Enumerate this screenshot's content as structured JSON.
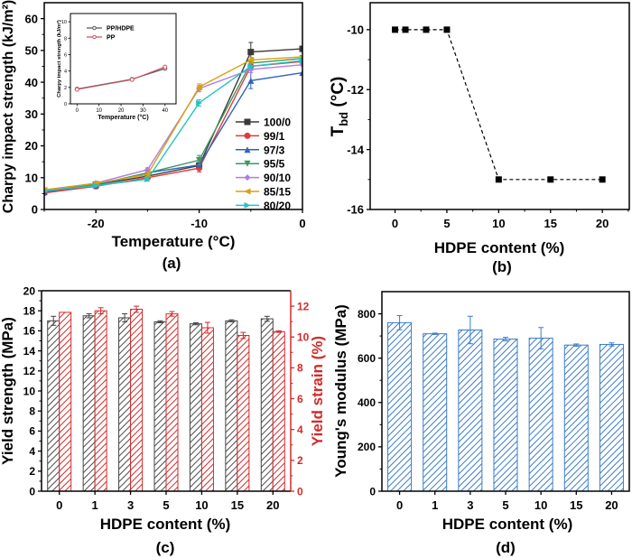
{
  "chart_data": [
    {
      "id": "a",
      "type": "line",
      "panel_label": "(a)",
      "xlabel": "Temperature (°C)",
      "ylabel": "Charpy impact strength (kJ/m²)",
      "xlim": [
        -25,
        0
      ],
      "ylim": [
        0,
        65
      ],
      "xticks": [
        -20,
        -10,
        0
      ],
      "yticks": [
        0,
        10,
        20,
        30,
        40,
        50,
        60
      ],
      "legend_position": "bottom-right",
      "x": [
        -25,
        -20,
        -15,
        -10,
        -5,
        0
      ],
      "series": [
        {
          "name": "100/0",
          "color": "#3a3a3a",
          "marker": "square",
          "values": [
            5.5,
            7.8,
            10.5,
            13.8,
            49.5,
            50.5
          ],
          "errors": [
            0.3,
            0.4,
            0.5,
            0.8,
            3.0,
            0
          ]
        },
        {
          "name": "99/1",
          "color": "#e03b3b",
          "marker": "circle",
          "values": [
            5.2,
            7.3,
            10.0,
            13.0,
            45.0,
            46.5
          ],
          "errors": [
            0.3,
            0.8,
            0.5,
            1.2,
            0.8,
            0
          ]
        },
        {
          "name": "97/3",
          "color": "#2f63c1",
          "marker": "triangle-up",
          "values": [
            5.6,
            7.6,
            11.5,
            14.0,
            40.5,
            43.0
          ],
          "errors": [
            0.3,
            0.4,
            0.5,
            0.8,
            2.5,
            0
          ]
        },
        {
          "name": "95/5",
          "color": "#3b9a5e",
          "marker": "triangle-down",
          "values": [
            5.8,
            7.9,
            11.5,
            15.5,
            46.0,
            47.5
          ],
          "errors": [
            0.3,
            0.5,
            0.6,
            1.5,
            0.8,
            0
          ]
        },
        {
          "name": "90/10",
          "color": "#b27ee0",
          "marker": "diamond",
          "values": [
            6.0,
            8.3,
            12.5,
            38.0,
            44.0,
            45.5
          ],
          "errors": [
            0.3,
            0.5,
            0.6,
            1.0,
            1.0,
            0
          ]
        },
        {
          "name": "85/15",
          "color": "#d9a012",
          "marker": "triangle-left",
          "values": [
            6.2,
            8.2,
            11.0,
            38.5,
            47.0,
            48.0
          ],
          "errors": [
            0.3,
            0.5,
            0.6,
            1.0,
            0.8,
            0
          ]
        },
        {
          "name": "80/20",
          "color": "#27c2c2",
          "marker": "triangle-right",
          "values": [
            5.8,
            7.5,
            9.5,
            33.5,
            45.0,
            46.8
          ],
          "errors": [
            0.3,
            0.4,
            0.6,
            1.0,
            0.8,
            0
          ]
        }
      ],
      "inset": {
        "type": "line",
        "xlabel": "Temperature (°C)",
        "ylabel": "Charpy impact strength (kJ/m²)",
        "xlim": [
          -3,
          45
        ],
        "ylim": [
          0,
          11
        ],
        "xticks": [
          0,
          10,
          20,
          30,
          40
        ],
        "yticks": [
          0,
          2,
          4,
          6,
          8,
          10
        ],
        "legend_position": "top-left",
        "x": [
          0,
          25,
          40
        ],
        "series": [
          {
            "name": "PP/HDPE",
            "color": "#555566",
            "marker": "circle-open",
            "values": [
              1.8,
              3.0,
              4.3
            ]
          },
          {
            "name": "PP",
            "color": "#c9555e",
            "marker": "circle-open",
            "values": [
              1.75,
              2.95,
              4.5
            ]
          }
        ]
      }
    },
    {
      "id": "b",
      "type": "line",
      "panel_label": "(b)",
      "xlabel": "HDPE content (%)",
      "ylabel_main": "T",
      "ylabel_sub": "bd",
      "ylabel_unit": " (°C)",
      "xlim": [
        -2.4,
        22.6
      ],
      "ylim": [
        -16,
        -9.1
      ],
      "xticks": [
        0,
        5,
        10,
        15,
        20
      ],
      "yticks": [
        -16,
        -14,
        -12,
        -10
      ],
      "line_style": "dashed",
      "series": [
        {
          "name": "Tbd",
          "color": "#000000",
          "marker": "square",
          "x": [
            0,
            1,
            3,
            5,
            10,
            15,
            20
          ],
          "values": [
            -10,
            -10,
            -10,
            -10,
            -15,
            -15,
            -15
          ]
        }
      ]
    },
    {
      "id": "c",
      "type": "bar",
      "panel_label": "(c)",
      "xlabel": "HDPE content (%)",
      "ylabel": "Yield strength (MPa)",
      "ylabel_right": "Yield strain (%)",
      "categories": [
        "0",
        "1",
        "3",
        "5",
        "10",
        "15",
        "20"
      ],
      "ylim": [
        0,
        20
      ],
      "ylim_right": [
        0,
        13
      ],
      "yticks": [
        0,
        2,
        4,
        6,
        8,
        10,
        12,
        14,
        16,
        18,
        20
      ],
      "yticks_right": [
        0,
        2,
        4,
        6,
        8,
        10,
        12
      ],
      "right_axis_color": "#d42a2a",
      "series": [
        {
          "name": "Yield strength",
          "axis": "left",
          "color": "#444444",
          "values": [
            17.0,
            17.5,
            17.3,
            16.9,
            16.7,
            17.0,
            17.2
          ],
          "errors": [
            0.45,
            0.2,
            0.4,
            0.1,
            0.1,
            0.1,
            0.25
          ]
        },
        {
          "name": "Yield strain",
          "axis": "right",
          "color": "#d42a2a",
          "values": [
            11.6,
            11.7,
            11.8,
            11.5,
            10.6,
            10.1,
            10.35
          ],
          "errors": [
            0,
            0.2,
            0.2,
            0.15,
            0.35,
            0.2,
            0.05
          ]
        }
      ]
    },
    {
      "id": "d",
      "type": "bar",
      "panel_label": "(d)",
      "xlabel": "HDPE content (%)",
      "ylabel": "Young's modulus (MPa)",
      "categories": [
        "0",
        "1",
        "3",
        "5",
        "10",
        "15",
        "20"
      ],
      "ylim": [
        0,
        900
      ],
      "yticks": [
        0,
        200,
        400,
        600,
        800
      ],
      "series": [
        {
          "name": "Young's modulus",
          "color": "#3a7cc8",
          "values": [
            760,
            710,
            727,
            686,
            690,
            659,
            662
          ],
          "errors": [
            32,
            3,
            62,
            8,
            48,
            5,
            7
          ]
        }
      ]
    }
  ]
}
